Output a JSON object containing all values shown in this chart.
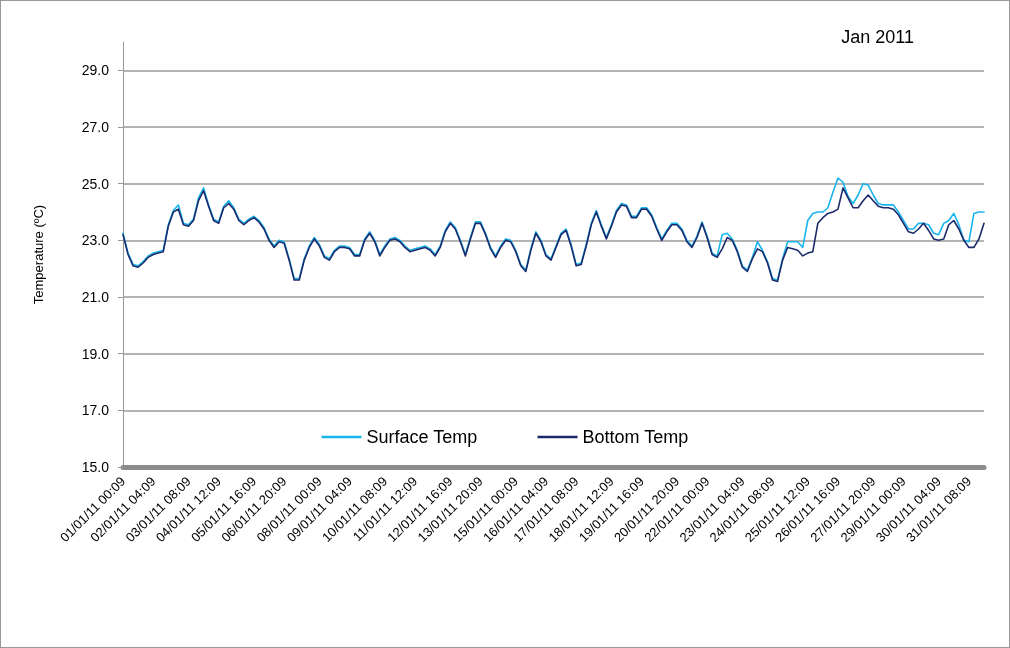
{
  "chart_data": {
    "type": "line",
    "title": "Jan 2011",
    "ylabel": "Temperature (ºC)",
    "categories": [
      "01/01/11 00:09",
      null,
      null,
      null,
      null,
      null,
      "02/01/11 04:09",
      null,
      null,
      null,
      null,
      null,
      null,
      "03/01/11 08:09",
      null,
      null,
      null,
      null,
      null,
      "04/01/11 12:09",
      null,
      null,
      null,
      null,
      null,
      null,
      "05/01/11 16:09",
      null,
      null,
      null,
      null,
      null,
      "06/01/11 20:09",
      null,
      null,
      null,
      null,
      null,
      null,
      "08/01/11 00:09",
      null,
      null,
      null,
      null,
      null,
      "09/01/11 04:09",
      null,
      null,
      null,
      null,
      null,
      null,
      "10/01/11 08:09",
      null,
      null,
      null,
      null,
      null,
      "11/01/11 12:09",
      null,
      null,
      null,
      null,
      null,
      null,
      "12/01/11 16:09",
      null,
      null,
      null,
      null,
      null,
      "13/01/11 20:09",
      null,
      null,
      null,
      null,
      null,
      null,
      "15/01/11 00:09",
      null,
      null,
      null,
      null,
      null,
      "16/01/11 04:09",
      null,
      null,
      null,
      null,
      null,
      "17/01/11 08:09",
      null,
      null,
      null,
      null,
      null,
      null,
      "18/01/11 12:09",
      null,
      null,
      null,
      null,
      null,
      "19/01/11 16:09",
      null,
      null,
      null,
      null,
      null,
      null,
      "20/01/11 20:09",
      null,
      null,
      null,
      null,
      null,
      "22/01/11 00:09",
      null,
      null,
      null,
      null,
      null,
      null,
      "23/01/11 04:09",
      null,
      null,
      null,
      null,
      null,
      "24/01/11 08:09",
      null,
      null,
      null,
      null,
      null,
      null,
      "25/01/11 12:09",
      null,
      null,
      null,
      null,
      null,
      "26/01/11 16:09",
      null,
      null,
      null,
      null,
      null,
      null,
      "27/01/11 20:09",
      null,
      null,
      null,
      null,
      null,
      "29/01/11 00:09",
      null,
      null,
      null,
      null,
      null,
      null,
      "30/01/11 04:09",
      null,
      null,
      null,
      null,
      null,
      "31/01/11 08:09",
      null,
      null,
      null
    ],
    "series": [
      {
        "name": "Surface Temp",
        "color": "#1ab4ec",
        "values": [
          23.25,
          22.55,
          22.15,
          22.1,
          22.25,
          22.45,
          22.55,
          22.6,
          22.65,
          23.55,
          24.05,
          24.25,
          23.6,
          23.55,
          23.75,
          24.5,
          24.85,
          24.25,
          23.75,
          23.65,
          24.2,
          24.4,
          24.15,
          23.75,
          23.6,
          23.75,
          23.85,
          23.7,
          23.45,
          23.05,
          22.8,
          23.0,
          22.95,
          22.35,
          21.65,
          21.65,
          22.35,
          22.8,
          23.1,
          22.85,
          22.45,
          22.35,
          22.65,
          22.8,
          22.8,
          22.75,
          22.5,
          22.5,
          23.05,
          23.3,
          23.0,
          22.5,
          22.8,
          23.05,
          23.1,
          23.0,
          22.8,
          22.65,
          22.7,
          22.75,
          22.8,
          22.7,
          22.5,
          22.8,
          23.35,
          23.65,
          23.45,
          23.0,
          22.5,
          23.1,
          23.65,
          23.65,
          23.25,
          22.75,
          22.45,
          22.8,
          23.05,
          23.0,
          22.65,
          22.15,
          21.95,
          22.7,
          23.3,
          23.0,
          22.5,
          22.35,
          22.8,
          23.25,
          23.4,
          22.85,
          22.15,
          22.2,
          22.85,
          23.6,
          24.05,
          23.55,
          23.1,
          23.55,
          24.05,
          24.3,
          24.25,
          23.85,
          23.85,
          24.15,
          24.15,
          23.9,
          23.45,
          23.05,
          23.35,
          23.6,
          23.6,
          23.4,
          23.0,
          22.8,
          23.15,
          23.65,
          23.15,
          22.55,
          22.45,
          23.2,
          23.25,
          23.05,
          22.65,
          22.1,
          21.95,
          22.4,
          22.95,
          22.65,
          22.25,
          21.65,
          21.6,
          22.35,
          22.95,
          22.95,
          22.95,
          22.75,
          23.7,
          23.95,
          24.0,
          24.0,
          24.15,
          24.7,
          25.2,
          25.05,
          24.55,
          24.3,
          24.6,
          25.0,
          24.95,
          24.6,
          24.3,
          24.25,
          24.25,
          24.25,
          24.0,
          23.7,
          23.4,
          23.4,
          23.6,
          23.6,
          23.55,
          23.25,
          23.2,
          23.6,
          23.7,
          23.95,
          23.55,
          23.0,
          22.95,
          23.95,
          24.0,
          24.0
        ]
      },
      {
        "name": "Bottom Temp",
        "color": "#1b2a6b",
        "values": [
          23.2,
          22.5,
          22.1,
          22.05,
          22.2,
          22.4,
          22.5,
          22.55,
          22.6,
          23.5,
          24.0,
          24.1,
          23.55,
          23.5,
          23.7,
          24.4,
          24.75,
          24.2,
          23.7,
          23.6,
          24.15,
          24.3,
          24.1,
          23.7,
          23.55,
          23.7,
          23.8,
          23.65,
          23.4,
          23.0,
          22.75,
          22.95,
          22.9,
          22.3,
          21.6,
          21.6,
          22.3,
          22.75,
          23.05,
          22.8,
          22.4,
          22.3,
          22.6,
          22.75,
          22.75,
          22.7,
          22.45,
          22.45,
          23.0,
          23.25,
          22.95,
          22.45,
          22.75,
          23.0,
          23.05,
          22.95,
          22.75,
          22.6,
          22.65,
          22.7,
          22.75,
          22.65,
          22.45,
          22.75,
          23.3,
          23.6,
          23.4,
          22.95,
          22.45,
          23.05,
          23.6,
          23.6,
          23.2,
          22.7,
          22.4,
          22.75,
          23.0,
          22.95,
          22.6,
          22.1,
          21.9,
          22.65,
          23.25,
          22.95,
          22.45,
          22.3,
          22.75,
          23.2,
          23.35,
          22.8,
          22.1,
          22.15,
          22.8,
          23.55,
          24.0,
          23.5,
          23.05,
          23.5,
          24.0,
          24.25,
          24.2,
          23.8,
          23.8,
          24.1,
          24.1,
          23.85,
          23.4,
          23.0,
          23.3,
          23.55,
          23.55,
          23.35,
          22.95,
          22.75,
          23.1,
          23.6,
          23.1,
          22.5,
          22.4,
          22.7,
          23.1,
          23.0,
          22.6,
          22.05,
          21.9,
          22.35,
          22.7,
          22.6,
          22.2,
          21.6,
          21.55,
          22.3,
          22.75,
          22.7,
          22.65,
          22.45,
          22.55,
          22.6,
          23.6,
          23.8,
          23.95,
          24.0,
          24.1,
          24.85,
          24.5,
          24.15,
          24.15,
          24.4,
          24.6,
          24.4,
          24.2,
          24.15,
          24.15,
          24.1,
          23.9,
          23.6,
          23.3,
          23.25,
          23.4,
          23.6,
          23.35,
          23.05,
          23.0,
          23.05,
          23.55,
          23.7,
          23.4,
          23.0,
          22.75,
          22.75,
          23.05,
          23.6
        ]
      }
    ],
    "ylim": [
      15,
      30
    ],
    "yticks": [
      {
        "value": 15,
        "label": "15.0"
      },
      {
        "value": 17,
        "label": "17.0"
      },
      {
        "value": 19,
        "label": "19.0"
      },
      {
        "value": 21,
        "label": "21.0"
      },
      {
        "value": 23,
        "label": "23.0"
      },
      {
        "value": 25,
        "label": "25.0"
      },
      {
        "value": 27,
        "label": "27.0"
      },
      {
        "value": 29,
        "label": "29.0"
      }
    ],
    "grid": "y",
    "legend": "bottom",
    "marker": "none",
    "line_style": "solid"
  }
}
